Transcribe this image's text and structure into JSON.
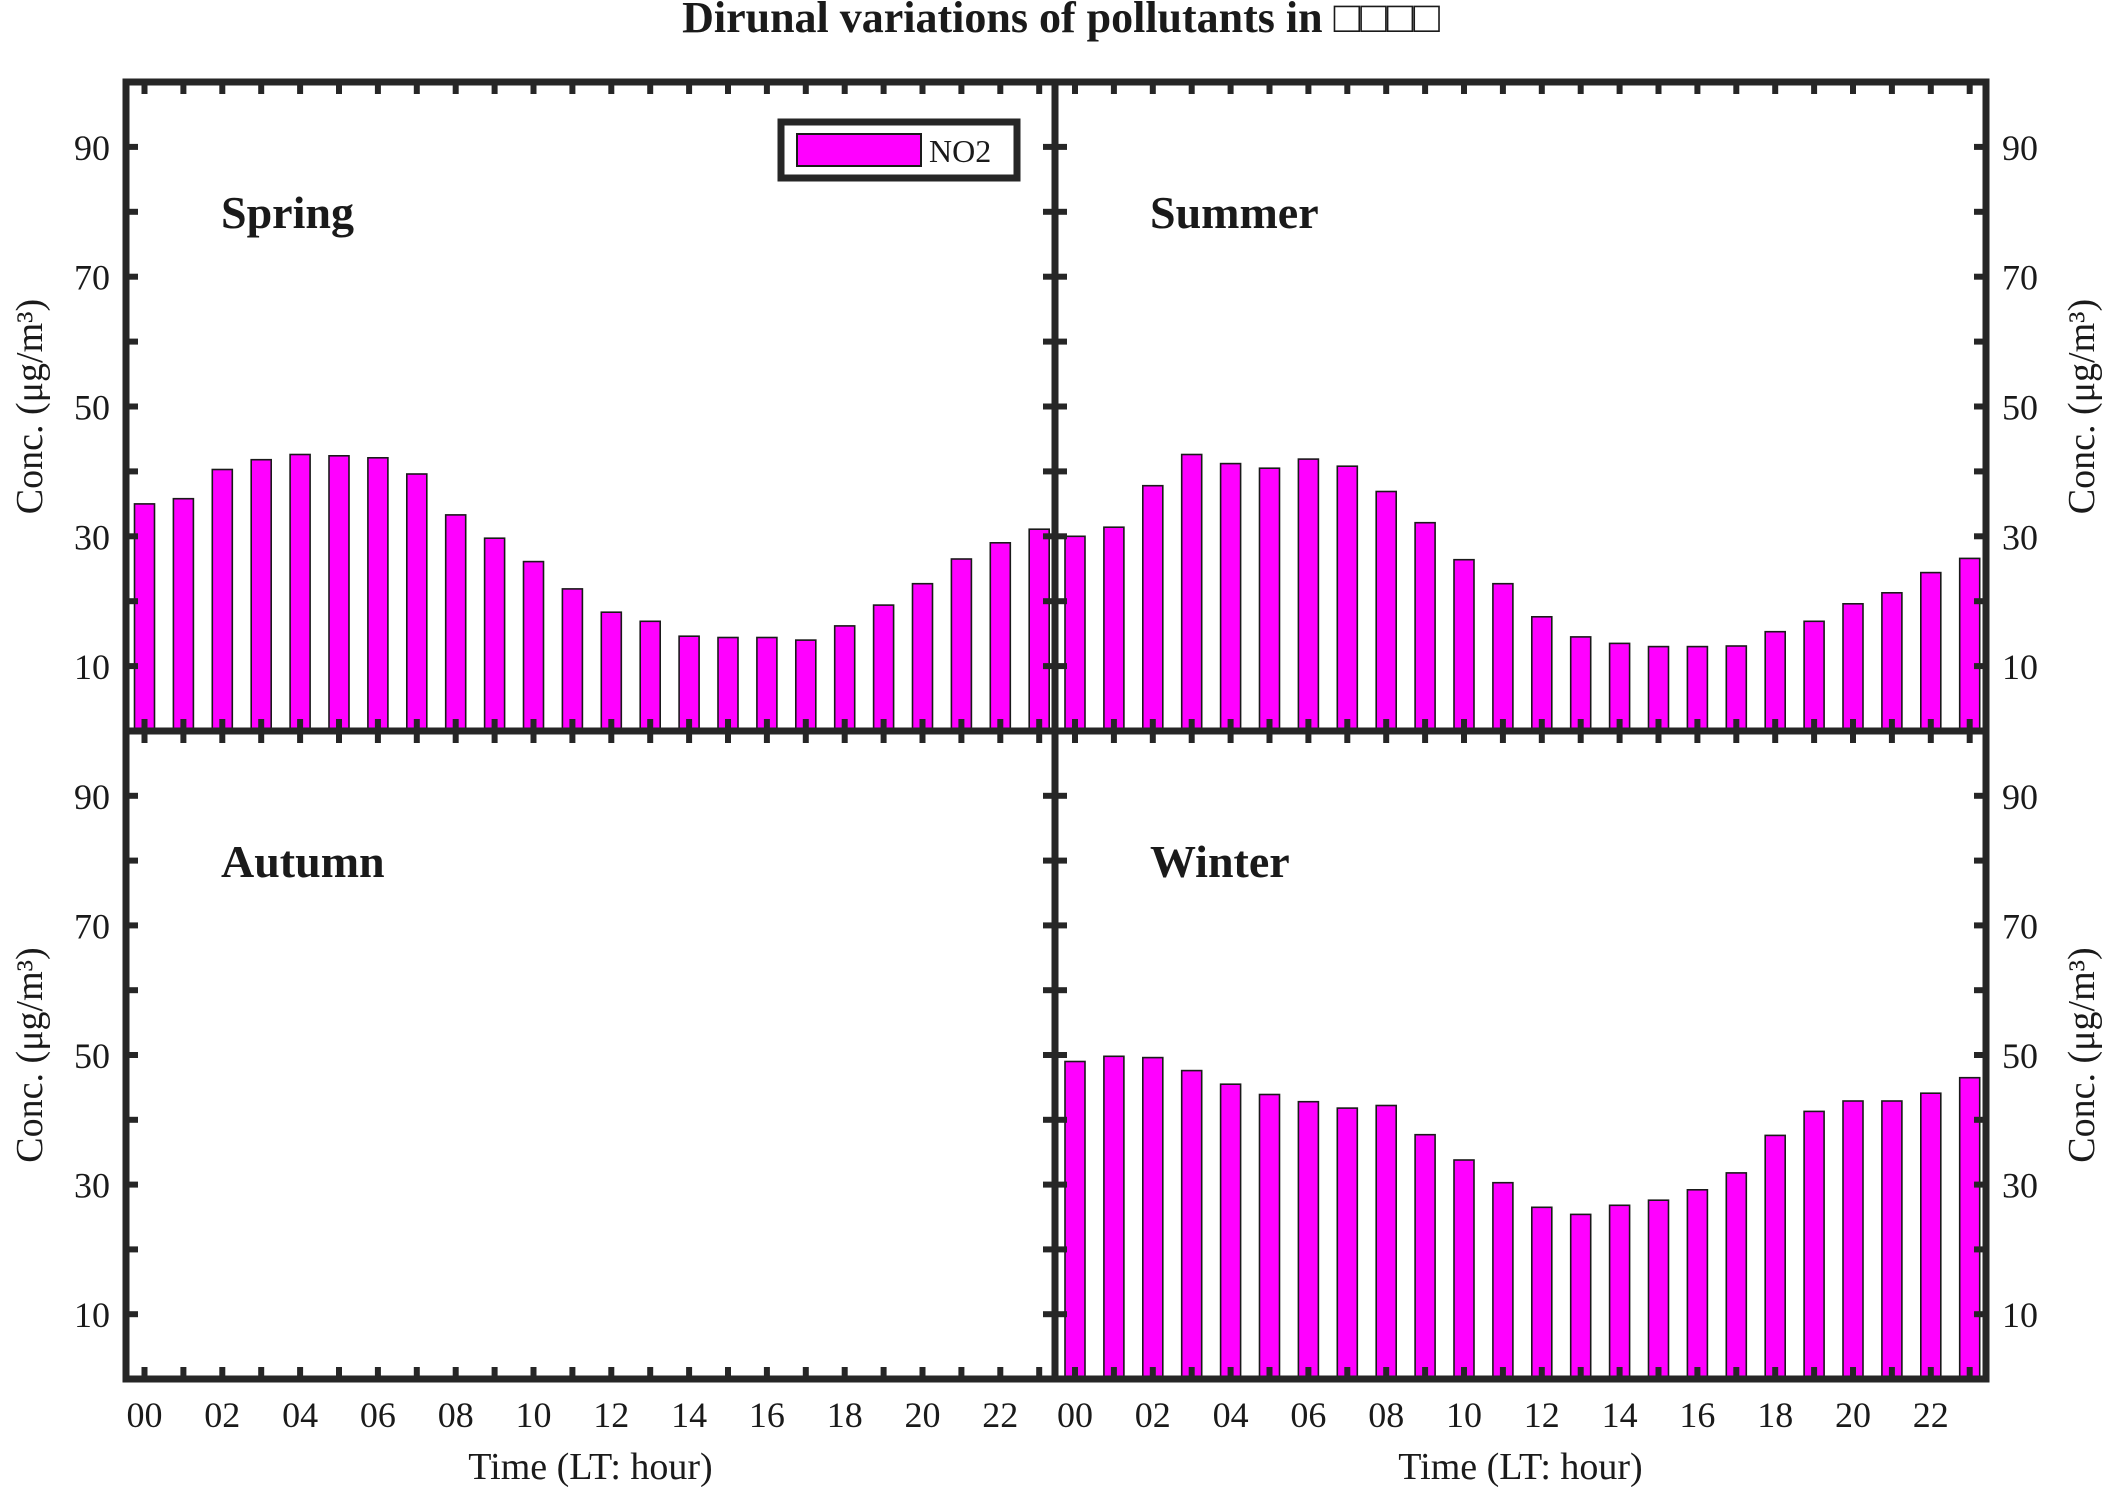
{
  "chart_data": {
    "type": "bar",
    "title": "Dirunal variations of pollutants in □□□□",
    "series_name": "NO2",
    "bar_color": "#ff00ff",
    "frame_color": "#262626",
    "xlabel": "Time (LT: hour)",
    "ylabel": "Conc. (μg/m³)",
    "ylim": [
      0,
      100
    ],
    "yticks": [
      "10",
      "30",
      "50",
      "70",
      "90"
    ],
    "xticks": [
      "00",
      "02",
      "04",
      "06",
      "08",
      "10",
      "12",
      "14",
      "16",
      "18",
      "20",
      "22"
    ],
    "hours": [
      0,
      1,
      2,
      3,
      4,
      5,
      6,
      7,
      8,
      9,
      10,
      11,
      12,
      13,
      14,
      15,
      16,
      17,
      18,
      19,
      20,
      21,
      22,
      23
    ],
    "panels": [
      {
        "name": "Spring",
        "values": [
          35.0,
          35.8,
          40.3,
          41.8,
          42.6,
          42.4,
          42.1,
          39.6,
          33.3,
          29.7,
          26.1,
          21.9,
          18.3,
          16.9,
          14.6,
          14.4,
          14.4,
          14.0,
          16.2,
          19.4,
          22.7,
          26.5,
          29.0,
          31.1
        ]
      },
      {
        "name": "Summer",
        "values": [
          30.0,
          31.4,
          37.8,
          42.6,
          41.2,
          40.5,
          41.9,
          40.8,
          36.9,
          32.1,
          26.4,
          22.7,
          17.6,
          14.5,
          13.5,
          13.0,
          13.0,
          13.1,
          15.3,
          16.9,
          19.6,
          21.3,
          24.4,
          26.6
        ]
      },
      {
        "name": "Autumn",
        "values": []
      },
      {
        "name": "Winter",
        "values": [
          49.0,
          49.8,
          49.6,
          47.6,
          45.5,
          43.9,
          42.8,
          41.8,
          42.2,
          37.7,
          33.8,
          30.3,
          26.5,
          25.4,
          26.8,
          27.6,
          29.2,
          31.8,
          37.6,
          41.3,
          42.9,
          42.9,
          44.1,
          46.5
        ]
      }
    ]
  }
}
